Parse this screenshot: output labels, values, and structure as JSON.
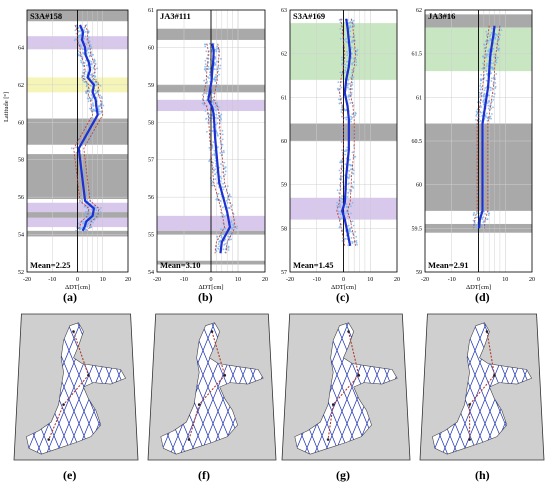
{
  "figure": {
    "y_axis_label": "Latitude [°]",
    "x_axis_label": "ΔDT[cm]"
  },
  "colors": {
    "gap_band": "#a9a9a9",
    "purple_band": "#d8c8ec",
    "yellow_band": "#f6f5b8",
    "green_band": "#c9e6c2",
    "mean_line": "#1f2fd0",
    "point_cloud": "#7fb6ef",
    "error_envelope": "#c0392b",
    "land": "#cfcfcf",
    "sea": "#ffffff",
    "track": "#1a2fb0",
    "coast_track": "#b03a2e"
  },
  "chart_data": [
    {
      "type": "line",
      "panel": "a",
      "mission_label": "S3A#158",
      "mean_label": "Mean=2.25",
      "caption": "(a)",
      "xlabel": "ΔDT[cm]",
      "ylabel": "Latitude [°]",
      "xlim": [
        -20,
        20
      ],
      "ylim": [
        52,
        66
      ],
      "xticks": [
        -20,
        -10,
        0,
        10,
        20
      ],
      "yticks": [
        52,
        54,
        56,
        58,
        60,
        62,
        64
      ],
      "grid": true,
      "gray_bands": [
        [
          65.4,
          66.0
        ],
        [
          60.2,
          58.8
        ],
        [
          58.3,
          55.9
        ],
        [
          55.2,
          54.9
        ],
        [
          54.2,
          53.9
        ]
      ],
      "purple_bands": [
        [
          63.9,
          64.6
        ],
        [
          55.7,
          55.2
        ],
        [
          54.9,
          54.4
        ]
      ],
      "yellow_bands": [
        [
          61.6,
          62.4
        ]
      ],
      "green_bands": [],
      "profile": {
        "lat": [
          65.2,
          64.8,
          64.4,
          64.0,
          63.6,
          63.2,
          62.8,
          62.4,
          62.0,
          61.6,
          61.2,
          60.8,
          60.4,
          58.6,
          55.8,
          55.4,
          55.0,
          54.7,
          54.4,
          54.2
        ],
        "dt": [
          1.0,
          2.2,
          1.8,
          3.0,
          3.2,
          4.5,
          5.0,
          4.0,
          6.5,
          6.0,
          7.2,
          7.5,
          8.0,
          0.5,
          3.0,
          6.5,
          6.0,
          3.5,
          2.8,
          2.0
        ]
      }
    },
    {
      "type": "line",
      "panel": "b",
      "mission_label": "JA3#111",
      "mean_label": "Mean=3.10",
      "caption": "(b)",
      "xlabel": "ΔDT[cm]",
      "ylabel": "",
      "xlim": [
        -20,
        20
      ],
      "ylim": [
        54,
        61
      ],
      "xticks": [
        -20,
        -10,
        0,
        10,
        20
      ],
      "yticks": [
        54,
        55,
        56,
        57,
        58,
        59,
        60,
        61
      ],
      "grid": true,
      "gray_bands": [
        [
          60.5,
          60.2
        ],
        [
          59.0,
          58.8
        ],
        [
          55.1,
          55.0
        ],
        [
          54.3,
          54.2
        ]
      ],
      "purple_bands": [
        [
          58.6,
          58.3
        ],
        [
          55.5,
          55.1
        ]
      ],
      "yellow_bands": [],
      "green_bands": [],
      "profile": {
        "lat": [
          60.1,
          59.9,
          59.6,
          59.4,
          59.1,
          58.6,
          58.4,
          58.2,
          58.0,
          57.6,
          57.2,
          56.8,
          56.4,
          56.0,
          55.6,
          55.2,
          55.0,
          54.8,
          54.5
        ],
        "dt": [
          0.5,
          1.0,
          0.8,
          0.5,
          0.2,
          -1.0,
          0.5,
          1.0,
          1.2,
          1.5,
          2.0,
          2.5,
          3.0,
          4.5,
          6.0,
          7.0,
          5.5,
          4.0,
          3.5
        ]
      }
    },
    {
      "type": "line",
      "panel": "c",
      "mission_label": "S3A#169",
      "mean_label": "Mean=1.45",
      "caption": "(c)",
      "xlabel": "ΔDT[cm]",
      "ylabel": "",
      "xlim": [
        -20,
        20
      ],
      "ylim": [
        57,
        63
      ],
      "xticks": [
        -20,
        -10,
        0,
        10,
        20
      ],
      "yticks": [
        57,
        58,
        59,
        60,
        61,
        62,
        63
      ],
      "grid": true,
      "gray_bands": [
        [
          60.4,
          60.0
        ]
      ],
      "purple_bands": [
        [
          58.7,
          58.2
        ]
      ],
      "yellow_bands": [],
      "green_bands": [
        [
          62.7,
          61.4
        ]
      ],
      "profile": {
        "lat": [
          62.8,
          62.6,
          62.3,
          62.0,
          61.7,
          61.4,
          61.1,
          60.8,
          60.5,
          59.8,
          59.5,
          59.2,
          58.9,
          58.6,
          58.4,
          58.2,
          57.9,
          57.6
        ],
        "dt": [
          1.0,
          1.5,
          2.0,
          2.5,
          2.0,
          1.0,
          0.5,
          1.5,
          2.0,
          2.0,
          1.5,
          1.0,
          0.8,
          0.5,
          -0.5,
          0.5,
          1.5,
          2.5
        ]
      }
    },
    {
      "type": "line",
      "panel": "d",
      "mission_label": "JA3#16",
      "mean_label": "Mean=2.91",
      "caption": "(d)",
      "xlabel": "ΔDT[cm]",
      "ylabel": "",
      "xlim": [
        -20,
        20
      ],
      "ylim": [
        59,
        62
      ],
      "xticks": [
        -20,
        -10,
        0,
        10,
        20
      ],
      "yticks": [
        59,
        59.5,
        60,
        60.5,
        61,
        61.5,
        62
      ],
      "grid": true,
      "gray_bands": [
        [
          61.95,
          61.8
        ],
        [
          60.7,
          59.7
        ],
        [
          59.55,
          59.45
        ]
      ],
      "purple_bands": [],
      "yellow_bands": [],
      "green_bands": [
        [
          61.8,
          61.3
        ]
      ],
      "profile": {
        "lat": [
          61.82,
          61.7,
          61.6,
          61.5,
          61.4,
          61.3,
          61.2,
          61.1,
          61.0,
          60.9,
          60.8,
          60.7,
          59.7,
          59.6,
          59.5
        ],
        "dt": [
          6.0,
          5.5,
          5.0,
          4.5,
          4.2,
          4.0,
          3.8,
          3.5,
          3.0,
          2.5,
          2.0,
          1.5,
          1.5,
          0.5,
          0.2
        ]
      }
    }
  ],
  "maps": [
    {
      "caption": "(e)",
      "highlight": "S3A#158"
    },
    {
      "caption": "(f)",
      "highlight": "JA3#111"
    },
    {
      "caption": "(g)",
      "highlight": "S3A#169"
    },
    {
      "caption": "(h)",
      "highlight": "JA3#16"
    }
  ]
}
